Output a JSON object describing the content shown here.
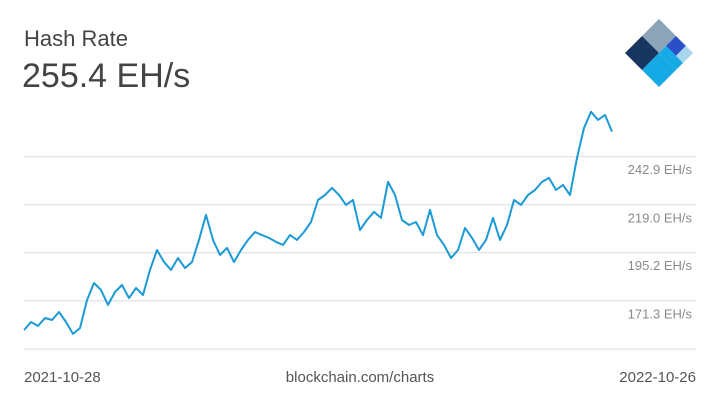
{
  "chart_data": {
    "type": "line",
    "title": "Hash Rate",
    "headline": "255.4 EH/s",
    "source": "blockchain.com/charts",
    "xlim": [
      "2021-10-28",
      "2022-10-26"
    ],
    "color": "#1c9ad6",
    "grid": true,
    "ylim": [
      147.4,
      268.6
    ],
    "yticks": [
      {
        "value": 171.3,
        "label": "171.3 EH/s"
      },
      {
        "value": 195.2,
        "label": "195.2 EH/s"
      },
      {
        "value": 219.0,
        "label": "219.0 EH/s"
      },
      {
        "value": 242.9,
        "label": "242.9 EH/s"
      }
    ],
    "values": [
      156.8,
      160.8,
      158.8,
      162.8,
      161.8,
      165.8,
      160.8,
      154.9,
      157.8,
      171.7,
      180.2,
      176.7,
      169.3,
      175.7,
      179.2,
      172.7,
      177.7,
      174.2,
      186.7,
      196.6,
      190.6,
      186.7,
      192.6,
      187.6,
      190.6,
      201.6,
      214.0,
      201.6,
      194.1,
      197.6,
      190.6,
      196.6,
      201.6,
      205.5,
      204.0,
      202.6,
      200.6,
      199.1,
      204.0,
      201.6,
      205.5,
      210.5,
      221.4,
      223.9,
      227.4,
      223.9,
      219.0,
      221.4,
      206.5,
      211.5,
      215.5,
      212.5,
      230.4,
      223.9,
      211.5,
      209.0,
      210.5,
      204.0,
      216.5,
      204.0,
      199.1,
      192.6,
      196.6,
      207.5,
      202.6,
      196.6,
      201.6,
      212.5,
      201.6,
      209.0,
      221.4,
      219.0,
      223.9,
      226.4,
      230.4,
      232.4,
      226.4,
      228.9,
      223.9,
      242.3,
      257.2,
      265.2,
      261.2,
      263.7,
      255.4
    ]
  }
}
